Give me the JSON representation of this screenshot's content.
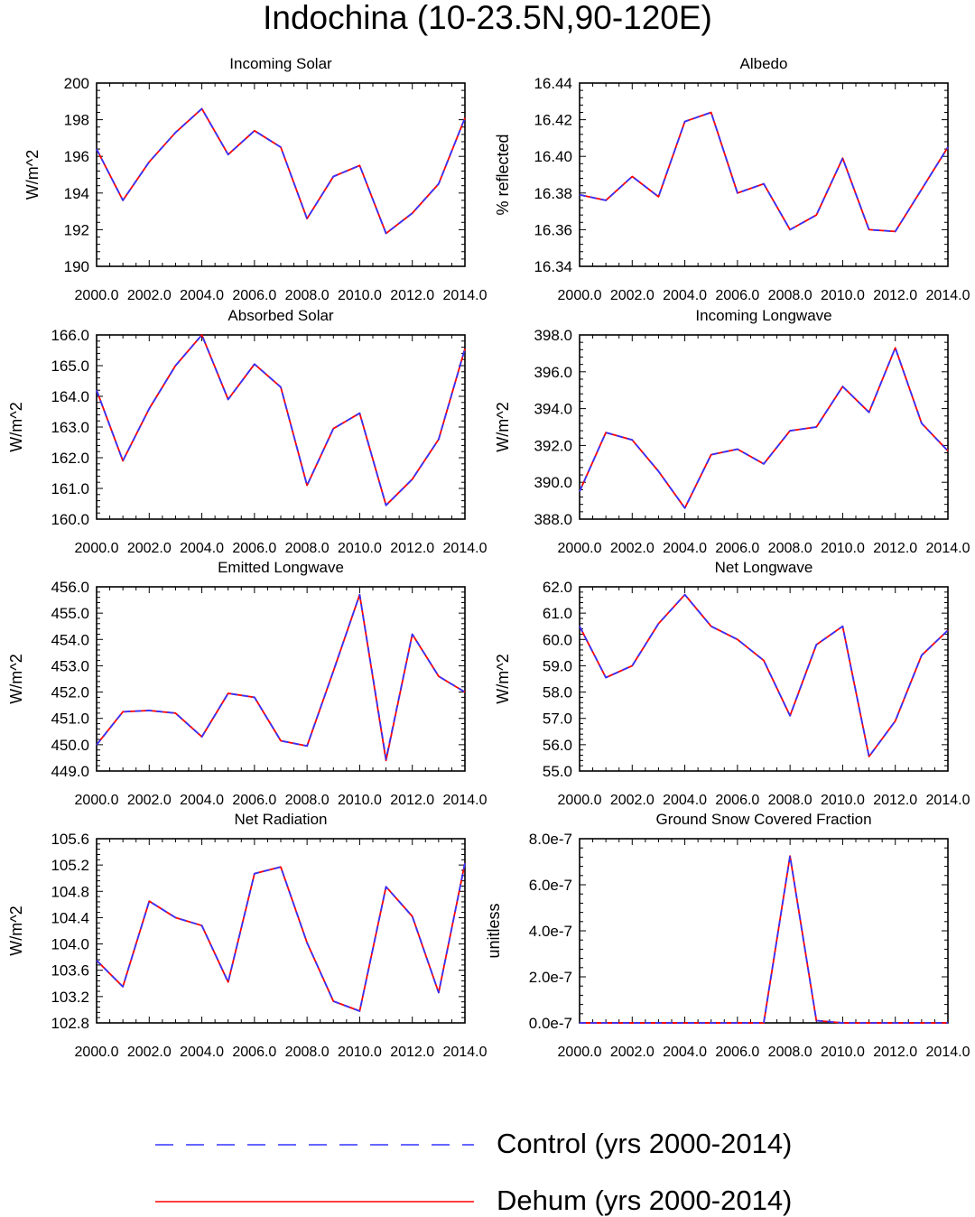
{
  "page": {
    "title": "Indochina (10-23.5N,90-120E)"
  },
  "legend": [
    {
      "label": "Control (yrs 2000-2014)",
      "color": "#3333ff",
      "style": "dashed"
    },
    {
      "label": "Dehum (yrs 2000-2014)",
      "color": "#ff0000",
      "style": "solid"
    }
  ],
  "chart_data": [
    {
      "type": "line",
      "title": "Incoming Solar",
      "ylabel": "W/m^2",
      "xlim": [
        2000,
        2014
      ],
      "ylim": [
        190,
        200
      ],
      "xticks": [
        2000,
        2002,
        2004,
        2006,
        2008,
        2010,
        2012,
        2014
      ],
      "xtick_labels": [
        "2000.0",
        "2002.0",
        "2004.0",
        "2006.0",
        "2008.0",
        "2010.0",
        "2012.0",
        "2014.0"
      ],
      "yticks": [
        190,
        192,
        194,
        196,
        198,
        200
      ],
      "ytick_labels": [
        "190",
        "192",
        "194",
        "196",
        "198",
        "200"
      ],
      "x": [
        2000,
        2001,
        2002,
        2003,
        2004,
        2005,
        2006,
        2007,
        2008,
        2009,
        2010,
        2011,
        2012,
        2013,
        2014
      ],
      "series": [
        {
          "name": "Control (yrs 2000-2014)",
          "values": [
            196.4,
            193.6,
            195.7,
            197.3,
            198.6,
            196.1,
            197.4,
            196.5,
            192.6,
            194.9,
            195.5,
            191.8,
            192.9,
            194.5,
            198.1
          ]
        },
        {
          "name": "Dehum (yrs 2000-2014)",
          "values": [
            196.4,
            193.6,
            195.7,
            197.3,
            198.6,
            196.1,
            197.4,
            196.5,
            192.6,
            194.9,
            195.5,
            191.8,
            192.9,
            194.5,
            198.1
          ]
        }
      ]
    },
    {
      "type": "line",
      "title": "Albedo",
      "ylabel": "% reflected",
      "xlim": [
        2000,
        2014
      ],
      "ylim": [
        16.34,
        16.44
      ],
      "xticks": [
        2000,
        2002,
        2004,
        2006,
        2008,
        2010,
        2012,
        2014
      ],
      "xtick_labels": [
        "2000.0",
        "2002.0",
        "2004.0",
        "2006.0",
        "2008.0",
        "2010.0",
        "2012.0",
        "2014.0"
      ],
      "yticks": [
        16.34,
        16.36,
        16.38,
        16.4,
        16.42,
        16.44
      ],
      "ytick_labels": [
        "16.34",
        "16.36",
        "16.38",
        "16.40",
        "16.42",
        "16.44"
      ],
      "x": [
        2000,
        2001,
        2002,
        2003,
        2004,
        2005,
        2006,
        2007,
        2008,
        2009,
        2010,
        2011,
        2012,
        2013,
        2014
      ],
      "series": [
        {
          "name": "Control (yrs 2000-2014)",
          "values": [
            16.379,
            16.376,
            16.389,
            16.378,
            16.419,
            16.424,
            16.38,
            16.385,
            16.36,
            16.368,
            16.399,
            16.36,
            16.359,
            16.382,
            16.405
          ]
        },
        {
          "name": "Dehum (yrs 2000-2014)",
          "values": [
            16.379,
            16.376,
            16.389,
            16.378,
            16.419,
            16.424,
            16.38,
            16.385,
            16.36,
            16.368,
            16.399,
            16.36,
            16.359,
            16.382,
            16.405
          ]
        }
      ]
    },
    {
      "type": "line",
      "title": "Absorbed Solar",
      "ylabel": "W/m^2",
      "xlim": [
        2000,
        2014
      ],
      "ylim": [
        160,
        166
      ],
      "xticks": [
        2000,
        2002,
        2004,
        2006,
        2008,
        2010,
        2012,
        2014
      ],
      "xtick_labels": [
        "2000.0",
        "2002.0",
        "2004.0",
        "2006.0",
        "2008.0",
        "2010.0",
        "2012.0",
        "2014.0"
      ],
      "yticks": [
        160,
        161,
        162,
        163,
        164,
        165,
        166
      ],
      "ytick_labels": [
        "160.0",
        "161.0",
        "162.0",
        "163.0",
        "164.0",
        "165.0",
        "166.0"
      ],
      "x": [
        2000,
        2001,
        2002,
        2003,
        2004,
        2005,
        2006,
        2007,
        2008,
        2009,
        2010,
        2011,
        2012,
        2013,
        2014
      ],
      "series": [
        {
          "name": "Control (yrs 2000-2014)",
          "values": [
            164.2,
            161.9,
            163.6,
            165.0,
            166.0,
            163.9,
            165.05,
            164.3,
            161.1,
            162.95,
            163.45,
            160.45,
            161.3,
            162.6,
            165.55
          ]
        },
        {
          "name": "Dehum (yrs 2000-2014)",
          "values": [
            164.2,
            161.9,
            163.6,
            165.0,
            166.0,
            163.9,
            165.05,
            164.3,
            161.1,
            162.95,
            163.45,
            160.45,
            161.3,
            162.6,
            165.55
          ]
        }
      ]
    },
    {
      "type": "line",
      "title": "Incoming Longwave",
      "ylabel": "W/m^2",
      "xlim": [
        2000,
        2014
      ],
      "ylim": [
        388,
        398
      ],
      "xticks": [
        2000,
        2002,
        2004,
        2006,
        2008,
        2010,
        2012,
        2014
      ],
      "xtick_labels": [
        "2000.0",
        "2002.0",
        "2004.0",
        "2006.0",
        "2008.0",
        "2010.0",
        "2012.0",
        "2014.0"
      ],
      "yticks": [
        388,
        390,
        392,
        394,
        396,
        398
      ],
      "ytick_labels": [
        "388.0",
        "390.0",
        "392.0",
        "394.0",
        "396.0",
        "398.0"
      ],
      "x": [
        2000,
        2001,
        2002,
        2003,
        2004,
        2005,
        2006,
        2007,
        2008,
        2009,
        2010,
        2011,
        2012,
        2013,
        2014
      ],
      "series": [
        {
          "name": "Control (yrs 2000-2014)",
          "values": [
            389.5,
            392.7,
            392.3,
            390.6,
            388.6,
            391.5,
            391.8,
            391.0,
            392.8,
            393.0,
            395.2,
            393.8,
            397.3,
            393.2,
            391.7
          ]
        },
        {
          "name": "Dehum (yrs 2000-2014)",
          "values": [
            389.5,
            392.7,
            392.3,
            390.6,
            388.6,
            391.5,
            391.8,
            391.0,
            392.8,
            393.0,
            395.2,
            393.8,
            397.3,
            393.2,
            391.7
          ]
        }
      ]
    },
    {
      "type": "line",
      "title": "Emitted Longwave",
      "ylabel": "W/m^2",
      "xlim": [
        2000,
        2014
      ],
      "ylim": [
        449,
        456
      ],
      "xticks": [
        2000,
        2002,
        2004,
        2006,
        2008,
        2010,
        2012,
        2014
      ],
      "xtick_labels": [
        "2000.0",
        "2002.0",
        "2004.0",
        "2006.0",
        "2008.0",
        "2010.0",
        "2012.0",
        "2014.0"
      ],
      "yticks": [
        449,
        450,
        451,
        452,
        453,
        454,
        455,
        456
      ],
      "ytick_labels": [
        "449.0",
        "450.0",
        "451.0",
        "452.0",
        "453.0",
        "454.0",
        "455.0",
        "456.0"
      ],
      "x": [
        2000,
        2001,
        2002,
        2003,
        2004,
        2005,
        2006,
        2007,
        2008,
        2009,
        2010,
        2011,
        2012,
        2013,
        2014
      ],
      "series": [
        {
          "name": "Control (yrs 2000-2014)",
          "values": [
            450.0,
            451.25,
            451.3,
            451.2,
            450.3,
            451.95,
            451.8,
            450.15,
            449.95,
            452.8,
            455.7,
            449.45,
            454.2,
            452.6,
            452.0
          ]
        },
        {
          "name": "Dehum (yrs 2000-2014)",
          "values": [
            450.0,
            451.25,
            451.3,
            451.2,
            450.3,
            451.95,
            451.8,
            450.15,
            449.95,
            452.8,
            455.7,
            449.4,
            454.2,
            452.6,
            452.0
          ]
        }
      ]
    },
    {
      "type": "line",
      "title": "Net Longwave",
      "ylabel": "W/m^2",
      "xlim": [
        2000,
        2014
      ],
      "ylim": [
        55,
        62
      ],
      "xticks": [
        2000,
        2002,
        2004,
        2006,
        2008,
        2010,
        2012,
        2014
      ],
      "xtick_labels": [
        "2000.0",
        "2002.0",
        "2004.0",
        "2006.0",
        "2008.0",
        "2010.0",
        "2012.0",
        "2014.0"
      ],
      "yticks": [
        55,
        56,
        57,
        58,
        59,
        60,
        61,
        62
      ],
      "ytick_labels": [
        "55.0",
        "56.0",
        "57.0",
        "58.0",
        "59.0",
        "60.0",
        "61.0",
        "62.0"
      ],
      "x": [
        2000,
        2001,
        2002,
        2003,
        2004,
        2005,
        2006,
        2007,
        2008,
        2009,
        2010,
        2011,
        2012,
        2013,
        2014
      ],
      "series": [
        {
          "name": "Control (yrs 2000-2014)",
          "values": [
            60.5,
            58.55,
            59.0,
            60.6,
            61.7,
            60.5,
            60.0,
            59.2,
            57.1,
            59.8,
            60.5,
            55.55,
            56.9,
            59.4,
            60.35
          ]
        },
        {
          "name": "Dehum (yrs 2000-2014)",
          "values": [
            60.5,
            58.55,
            59.0,
            60.6,
            61.7,
            60.5,
            60.0,
            59.2,
            57.1,
            59.8,
            60.5,
            55.55,
            56.9,
            59.4,
            60.35
          ]
        }
      ]
    },
    {
      "type": "line",
      "title": "Net Radiation",
      "ylabel": "W/m^2",
      "xlim": [
        2000,
        2014
      ],
      "ylim": [
        102.8,
        105.6
      ],
      "xticks": [
        2000,
        2002,
        2004,
        2006,
        2008,
        2010,
        2012,
        2014
      ],
      "xtick_labels": [
        "2000.0",
        "2002.0",
        "2004.0",
        "2006.0",
        "2008.0",
        "2010.0",
        "2012.0",
        "2014.0"
      ],
      "yticks": [
        102.8,
        103.2,
        103.6,
        104.0,
        104.4,
        104.8,
        105.2,
        105.6
      ],
      "ytick_labels": [
        "102.8",
        "103.2",
        "103.6",
        "104.0",
        "104.4",
        "104.8",
        "105.2",
        "105.6"
      ],
      "x": [
        2000,
        2001,
        2002,
        2003,
        2004,
        2005,
        2006,
        2007,
        2008,
        2009,
        2010,
        2011,
        2012,
        2013,
        2014
      ],
      "series": [
        {
          "name": "Control (yrs 2000-2014)",
          "values": [
            103.75,
            103.35,
            104.65,
            104.4,
            104.28,
            103.42,
            105.07,
            105.17,
            104.02,
            103.13,
            102.98,
            104.87,
            104.42,
            103.26,
            105.23
          ]
        },
        {
          "name": "Dehum (yrs 2000-2014)",
          "values": [
            103.75,
            103.35,
            104.65,
            104.4,
            104.28,
            103.42,
            105.07,
            105.17,
            104.02,
            103.13,
            102.98,
            104.87,
            104.42,
            103.26,
            105.23
          ]
        }
      ]
    },
    {
      "type": "line",
      "title": "Ground Snow Covered Fraction",
      "ylabel": "unitless",
      "xlim": [
        2000,
        2014
      ],
      "ylim": [
        0,
        8e-07
      ],
      "xticks": [
        2000,
        2002,
        2004,
        2006,
        2008,
        2010,
        2012,
        2014
      ],
      "xtick_labels": [
        "2000.0",
        "2002.0",
        "2004.0",
        "2006.0",
        "2008.0",
        "2010.0",
        "2012.0",
        "2014.0"
      ],
      "yticks": [
        0,
        2e-07,
        4e-07,
        6e-07,
        8e-07
      ],
      "ytick_labels": [
        "0.0e-7",
        "2.0e-7",
        "4.0e-7",
        "6.0e-7",
        "8.0e-7"
      ],
      "x": [
        2000,
        2001,
        2002,
        2003,
        2004,
        2005,
        2006,
        2007,
        2008,
        2009,
        2010,
        2011,
        2012,
        2013,
        2014
      ],
      "series": [
        {
          "name": "Control (yrs 2000-2014)",
          "values": [
            0,
            0,
            0,
            0,
            0,
            0,
            0,
            0,
            7.25e-07,
            1e-08,
            0,
            0,
            0,
            0,
            0
          ]
        },
        {
          "name": "Dehum (yrs 2000-2014)",
          "values": [
            0,
            0,
            0,
            0,
            0,
            0,
            0,
            0,
            7.25e-07,
            1e-08,
            0,
            0,
            0,
            0,
            0
          ]
        }
      ]
    }
  ]
}
